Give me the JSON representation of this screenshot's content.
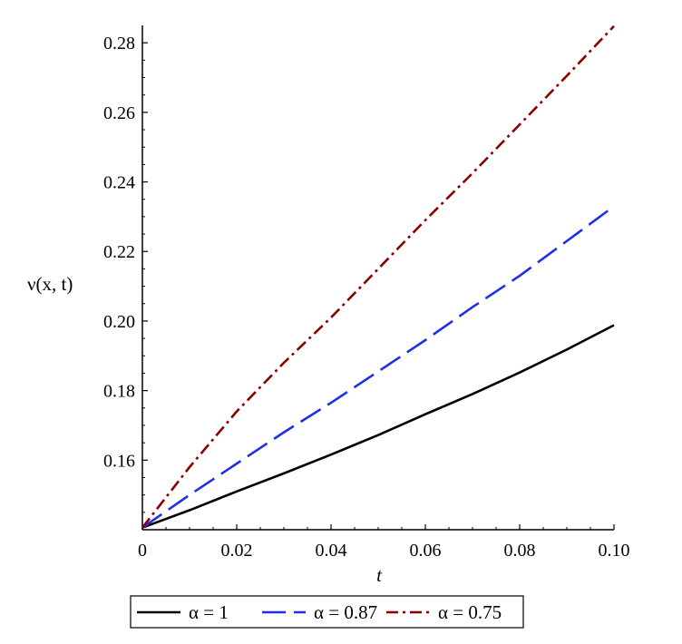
{
  "chart_data": {
    "type": "line",
    "xlabel": "t",
    "ylabel": "ν(x, t)",
    "xlim": [
      0,
      0.1
    ],
    "ylim": [
      0.14,
      0.285
    ],
    "x_ticks": [
      "0",
      "0.02",
      "0.04",
      "0.06",
      "0.08",
      "0.10"
    ],
    "y_ticks": [
      "0.16",
      "0.18",
      "0.20",
      "0.22",
      "0.24",
      "0.26",
      "0.28"
    ],
    "x_tick_values": [
      0,
      0.02,
      0.04,
      0.06,
      0.08,
      0.1
    ],
    "y_tick_values": [
      0.16,
      0.18,
      0.2,
      0.22,
      0.24,
      0.26,
      0.28
    ],
    "grid": false,
    "legend_position": "bottom",
    "x": [
      0,
      0.01,
      0.02,
      0.03,
      0.04,
      0.05,
      0.06,
      0.07,
      0.08,
      0.09,
      0.1
    ],
    "series": [
      {
        "name": "α = 1",
        "color": "#000000",
        "style": "solid",
        "values": [
          0.1406,
          0.1456,
          0.151,
          0.1562,
          0.1616,
          0.1672,
          0.1732,
          0.179,
          0.1852,
          0.1918,
          0.1988
        ]
      },
      {
        "name": "α = 0.87",
        "color": "#1f2fe8",
        "style": "dashed",
        "values": [
          0.1406,
          0.15,
          0.159,
          0.168,
          0.1765,
          0.1855,
          0.1945,
          0.204,
          0.213,
          0.223,
          0.233
        ]
      },
      {
        "name": "α = 0.75",
        "color": "#8b0000",
        "style": "dashdot",
        "values": [
          0.1406,
          0.158,
          0.174,
          0.188,
          0.201,
          0.215,
          0.229,
          0.2425,
          0.2565,
          0.2705,
          0.2848
        ]
      }
    ]
  }
}
